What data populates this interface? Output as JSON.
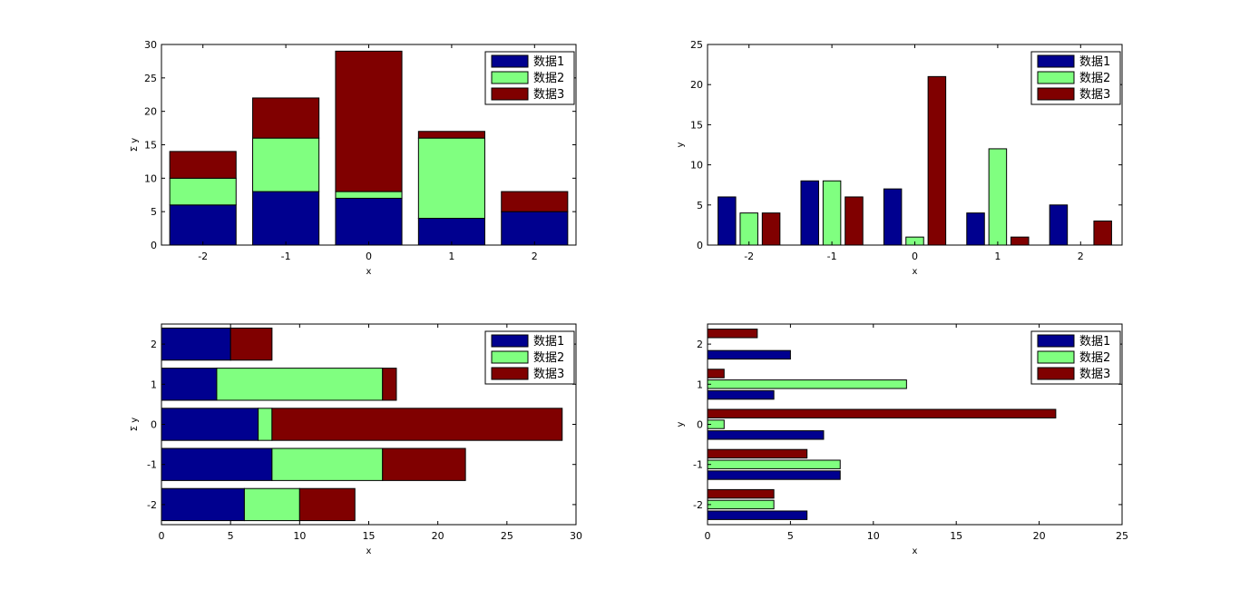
{
  "colors": {
    "series1": "#00008F",
    "series2": "#80FF80",
    "series3": "#800000",
    "axis": "#000000"
  },
  "legend_entries": [
    "数据1",
    "数据2",
    "数据3"
  ],
  "chart_data": [
    {
      "type": "bar",
      "orientation": "vertical",
      "mode": "stacked",
      "categories": [
        -2,
        -1,
        0,
        1,
        2
      ],
      "series": [
        {
          "name": "数据1",
          "values": [
            6,
            8,
            7,
            4,
            5
          ]
        },
        {
          "name": "数据2",
          "values": [
            4,
            8,
            1,
            12,
            0
          ]
        },
        {
          "name": "数据3",
          "values": [
            4,
            6,
            21,
            1,
            3
          ]
        }
      ],
      "xlabel": "x",
      "ylabel": "Σ y",
      "xticks": [
        "-2",
        "-1",
        "0",
        "1",
        "2"
      ],
      "yticks": [
        0,
        5,
        10,
        15,
        20,
        25,
        30
      ],
      "ylim": [
        0,
        30
      ],
      "legend": "top-right",
      "grid": false
    },
    {
      "type": "bar",
      "orientation": "vertical",
      "mode": "grouped",
      "categories": [
        -2,
        -1,
        0,
        1,
        2
      ],
      "series": [
        {
          "name": "数据1",
          "values": [
            6,
            8,
            7,
            4,
            5
          ]
        },
        {
          "name": "数据2",
          "values": [
            4,
            8,
            1,
            12,
            0
          ]
        },
        {
          "name": "数据3",
          "values": [
            4,
            6,
            21,
            1,
            3
          ]
        }
      ],
      "xlabel": "x",
      "ylabel": "y",
      "xticks": [
        "-2",
        "-1",
        "0",
        "1",
        "2"
      ],
      "yticks": [
        0,
        5,
        10,
        15,
        20,
        25
      ],
      "ylim": [
        0,
        25
      ],
      "legend": "top-right",
      "grid": false
    },
    {
      "type": "bar",
      "orientation": "horizontal",
      "mode": "stacked",
      "categories": [
        -2,
        -1,
        0,
        1,
        2
      ],
      "series": [
        {
          "name": "数据1",
          "values": [
            6,
            8,
            7,
            4,
            5
          ]
        },
        {
          "name": "数据2",
          "values": [
            4,
            8,
            1,
            12,
            0
          ]
        },
        {
          "name": "数据3",
          "values": [
            4,
            6,
            21,
            1,
            3
          ]
        }
      ],
      "xlabel": "x",
      "ylabel": "Σ y",
      "yticks": [
        "-2",
        "-1",
        "0",
        "1",
        "2"
      ],
      "xticks": [
        0,
        5,
        10,
        15,
        20,
        25,
        30
      ],
      "xlim": [
        0,
        30
      ],
      "legend": "top-right",
      "grid": false
    },
    {
      "type": "bar",
      "orientation": "horizontal",
      "mode": "grouped",
      "categories": [
        -2,
        -1,
        0,
        1,
        2
      ],
      "series": [
        {
          "name": "数据1",
          "values": [
            6,
            8,
            7,
            4,
            5
          ]
        },
        {
          "name": "数据2",
          "values": [
            4,
            8,
            1,
            12,
            0
          ]
        },
        {
          "name": "数据3",
          "values": [
            4,
            6,
            21,
            1,
            3
          ]
        }
      ],
      "xlabel": "x",
      "ylabel": "y",
      "yticks": [
        "-2",
        "-1",
        "0",
        "1",
        "2"
      ],
      "xticks": [
        0,
        5,
        10,
        15,
        20,
        25
      ],
      "xlim": [
        0,
        25
      ],
      "legend": "top-right",
      "grid": false
    }
  ]
}
